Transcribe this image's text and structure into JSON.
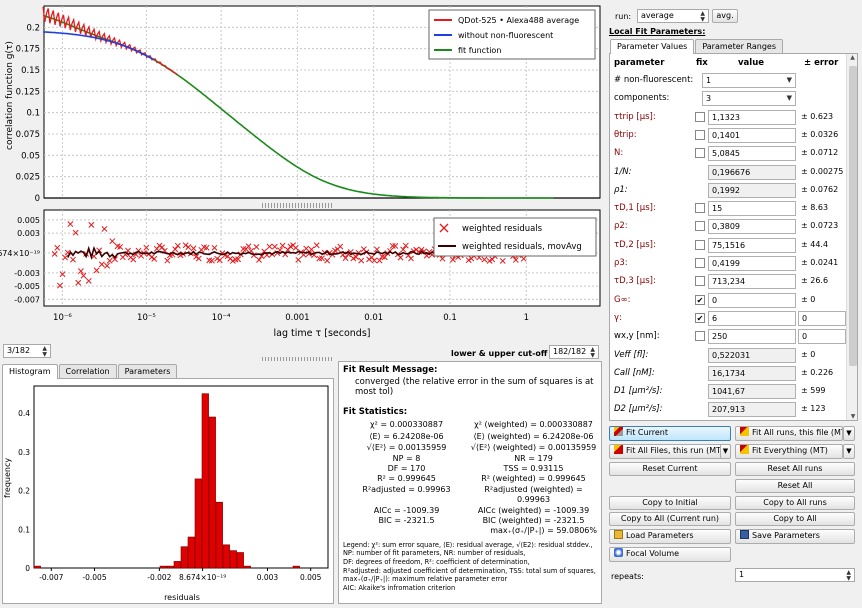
{
  "top_chart": {
    "ylabel": "correlation function  g(τ)",
    "yticks": [
      "0.2",
      "0.175",
      "0.15",
      "0.125",
      "0.1",
      "0.075",
      "0.05",
      "0.025",
      "0"
    ],
    "legend": [
      "QDot-525 • Alexa488 average",
      "without non-fluorescent",
      "fit function"
    ],
    "colors": {
      "data": "#e41a1c",
      "nonfluor": "#1f3fe0",
      "fit": "#1a8a1a"
    }
  },
  "residual_chart": {
    "yticks": [
      "0.005",
      "0.003",
      "8.674×10⁻¹⁹",
      "-0.003",
      "-0.005",
      "-0.007"
    ],
    "legend": [
      "weighted residuals",
      "weighted residuals, movAvg"
    ],
    "xticks": [
      "10⁻⁶",
      "10⁻⁵",
      "10⁻⁴",
      "0.001",
      "0.01",
      "0.1",
      "1"
    ],
    "xlabel": "lag time  τ [seconds]"
  },
  "bottom_left": {
    "spin": "3/182",
    "tabs": [
      "Histogram",
      "Correlation",
      "Parameters"
    ],
    "cutoff_label": "lower & upper cut-off",
    "cutoff_value": "182/182"
  },
  "histogram": {
    "yticks": [
      "0.4",
      "0.3",
      "0.2",
      "0.1",
      "0"
    ],
    "xticks": [
      "-0.007",
      "-0.005",
      "-0.002",
      "8.674×10⁻¹⁹",
      "0.003",
      "0.005"
    ],
    "ylabel": "frequency",
    "xlabel": "residuals",
    "bars": [
      0.005,
      0,
      0,
      0,
      0,
      0,
      0,
      0,
      0,
      0,
      0,
      0,
      0,
      0,
      0,
      0,
      0,
      0,
      0.005,
      0.005,
      0.017,
      0.055,
      0.08,
      0.23,
      0.45,
      0.39,
      0.17,
      0.06,
      0.045,
      0.04,
      0.005,
      0,
      0,
      0,
      0,
      0,
      0,
      0.005,
      0,
      0,
      0,
      0
    ]
  },
  "fit_result": {
    "msg_title": "Fit Result Message:",
    "msg": "converged (the relative error in the sum of squares is at most tol)",
    "stats_title": "Fit Statistics:",
    "rows": [
      [
        "χ² = 0.000330887",
        "χ² (weighted) = 0.000330887"
      ],
      [
        "⟨E⟩ = 6.24208e-06",
        "⟨E⟩ (weighted) = 6.24208e-06"
      ],
      [
        "√⟨E²⟩ = 0.00135959",
        "√⟨E²⟩ (weighted) = 0.00135959"
      ],
      [
        "NP = 8",
        "NR = 179"
      ],
      [
        "DF = 170",
        "TSS = 0.93115"
      ],
      [
        "R² = 0.999645",
        "R² (weighted) = 0.999645"
      ],
      [
        "R²adjusted = 0.99963",
        "R²adjusted (weighted) = 0.99963"
      ],
      [
        "AICc = -1009.39",
        "AICc (weighted) = -1009.39"
      ],
      [
        "BIC = -2321.5",
        "BIC (weighted) = -2321.5"
      ],
      [
        "",
        "max₊(σ₊/|P₊|) = 59.0806%"
      ]
    ],
    "legend_lines": [
      "Legend: χ²: sum error square, ⟨E⟩: residual average, √⟨E2⟩: residual stddev.,",
      "NP: number of fit parameters, NR: number of residuals,",
      "DF: degrees of freedom, R²: coefficient of determination,",
      "R²adjusted: adjusted coefficient of determination, TSS: total sum of squares,",
      "max₊(σ₊/|P₊|): maximum relative parameter error",
      "AIC: Akaike's infromation criterion"
    ]
  },
  "right_panel": {
    "run_label": "run:",
    "run_value": "average",
    "avg_button": "avg.",
    "local_title": "Local Fit Parameters:",
    "tabs": [
      "Parameter Values",
      "Parameter Ranges"
    ],
    "headers": {
      "parameter": "parameter",
      "fix": "fix",
      "value": "value",
      "error": "± error"
    },
    "rows": [
      {
        "label": "# non-fluorescent:",
        "style": "",
        "kind": "combo",
        "value": "1",
        "err": ""
      },
      {
        "label": "components:",
        "style": "",
        "kind": "combo",
        "value": "3",
        "err": ""
      },
      {
        "label": "τtrip [µs]:",
        "style": "red",
        "kind": "val",
        "fix": "",
        "value": "1,1323",
        "err": "± 0.623"
      },
      {
        "label": "θtrip:",
        "style": "red",
        "kind": "val",
        "fix": "",
        "value": "0,1401",
        "err": "± 0.0326"
      },
      {
        "label": "N:",
        "style": "red",
        "kind": "val",
        "fix": "",
        "value": "5,0845",
        "err": "± 0.0712"
      },
      {
        "label": "1/N:",
        "style": "it",
        "kind": "gray",
        "value": "0,196676",
        "err": "± 0.00275"
      },
      {
        "label": "ρ1:",
        "style": "it",
        "kind": "gray",
        "value": "0,1992",
        "err": "± 0.0762"
      },
      {
        "label": "τD,1 [µs]:",
        "style": "red",
        "kind": "val",
        "fix": "",
        "value": "15",
        "err": "± 8.63"
      },
      {
        "label": "ρ2:",
        "style": "red",
        "kind": "val",
        "fix": "",
        "value": "0,3809",
        "err": "± 0.0723"
      },
      {
        "label": "τD,2 [µs]:",
        "style": "red",
        "kind": "val",
        "fix": "",
        "value": "75,1516",
        "err": "± 44.4"
      },
      {
        "label": "ρ3:",
        "style": "red",
        "kind": "val",
        "fix": "",
        "value": "0,4199",
        "err": "± 0.0241"
      },
      {
        "label": "τD,3 [µs]:",
        "style": "red",
        "kind": "val",
        "fix": "",
        "value": "713,234",
        "err": "± 26.6"
      },
      {
        "label": "G∞:",
        "style": "red",
        "kind": "val",
        "fix": "✔",
        "value": "0",
        "err": "± 0"
      },
      {
        "label": "γ:",
        "style": "red",
        "kind": "valbox",
        "fix": "✔",
        "value": "6",
        "err": "0"
      },
      {
        "label": "wx,y [nm]:",
        "style": "",
        "kind": "valbox",
        "value": "250",
        "err": "0"
      },
      {
        "label": "Veff [fl]:",
        "style": "it",
        "kind": "gray",
        "value": "0,522031",
        "err": "± 0"
      },
      {
        "label": "Call [nM]:",
        "style": "it",
        "kind": "gray",
        "value": "16,1734",
        "err": "± 0.226"
      },
      {
        "label": "D1 [µm²/s]:",
        "style": "it",
        "kind": "gray",
        "value": "1041,67",
        "err": "± 599"
      },
      {
        "label": "D2 [µm²/s]:",
        "style": "it",
        "kind": "gray",
        "value": "207,913",
        "err": "± 123"
      },
      {
        "label": "D3 [µm²/s]:",
        "style": "it",
        "kind": "gray",
        "value": "21,9073",
        "err": "± 0.817"
      }
    ],
    "buttons": {
      "fit_current": "Fit Current",
      "fit_all_runs": "Fit All runs, this file (MT)",
      "fit_all_files": "Fit All Files, this run (MT)",
      "fit_everything": "Fit Everything (MT)",
      "reset_current": "Reset Current",
      "reset_all_runs": "Reset All runs",
      "reset_all": "Reset All",
      "copy_initial": "Copy to Initial",
      "copy_all_runs": "Copy to All runs",
      "copy_all_current": "Copy to All (Current run)",
      "copy_all": "Copy to All",
      "load_params": "Load Parameters",
      "save_params": "Save Parameters",
      "focal_volume": "Focal Volume"
    },
    "repeats_label": "repeats:",
    "repeats_value": "1"
  }
}
